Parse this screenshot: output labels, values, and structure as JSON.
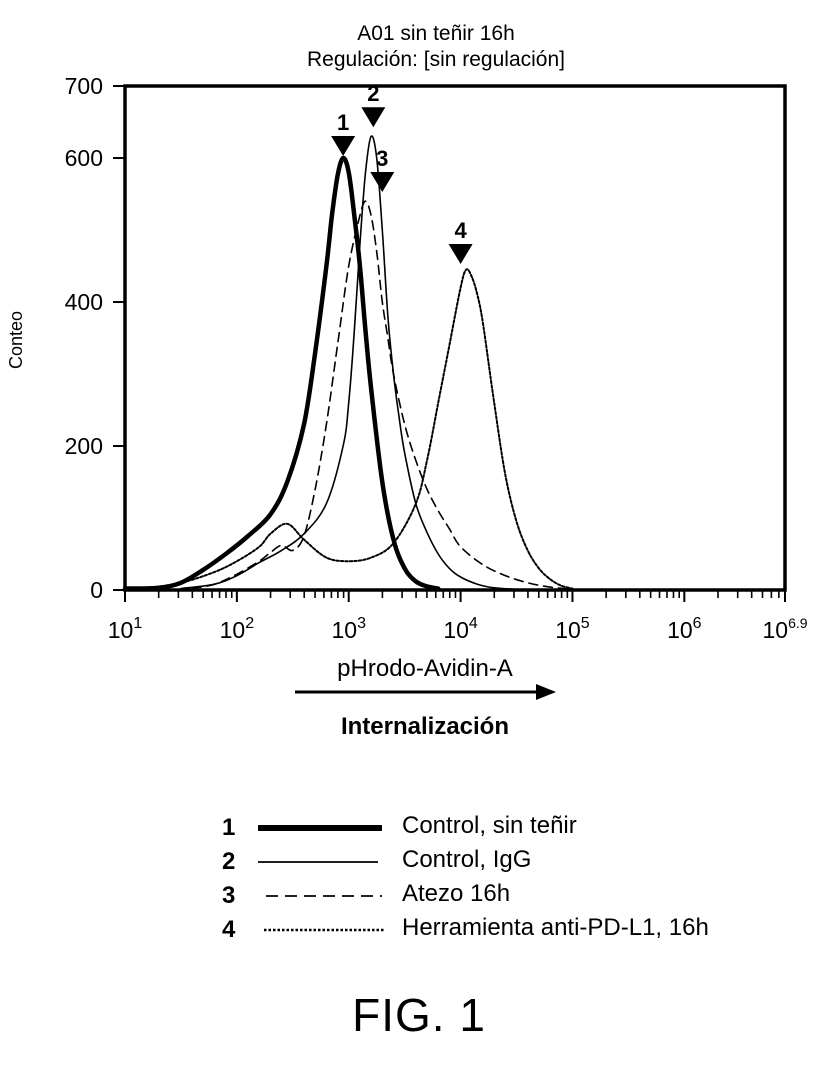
{
  "chart_data": {
    "type": "line",
    "title": "A01 sin teñir 16h",
    "subtitle": "Regulación: [sin regulación]",
    "xlabel": "pHrodo-Avidin-A",
    "ylabel": "Conteo",
    "arrow_label": "Internalización",
    "x_scale": "log",
    "xlim": [
      1,
      6.9
    ],
    "ylim": [
      0,
      700
    ],
    "x_ticks": [
      1,
      2,
      3,
      4,
      5,
      6,
      6.9
    ],
    "x_tick_labels": [
      {
        "base": "10",
        "exp": "1"
      },
      {
        "base": "10",
        "exp": "2"
      },
      {
        "base": "10",
        "exp": "3"
      },
      {
        "base": "10",
        "exp": "4"
      },
      {
        "base": "10",
        "exp": "5"
      },
      {
        "base": "10",
        "exp": "6"
      },
      {
        "base": "10",
        "exp": "6.9"
      }
    ],
    "y_ticks": [
      0,
      200,
      400,
      600,
      700
    ],
    "y_tick_labels": [
      "0",
      "200",
      "400",
      "600",
      "700"
    ],
    "grid": false,
    "legend_position": "bottom",
    "series": [
      {
        "id": "1",
        "name": "Control, sin teñir",
        "style": "thick-solid",
        "x": [
          1.0,
          1.3,
          1.5,
          1.7,
          1.9,
          2.1,
          2.3,
          2.45,
          2.6,
          2.7,
          2.8,
          2.85,
          2.9,
          2.95,
          3.0,
          3.05,
          3.1,
          3.15,
          3.2,
          3.3,
          3.4,
          3.5,
          3.6,
          3.7,
          3.8
        ],
        "y": [
          2,
          3,
          10,
          28,
          50,
          75,
          105,
          150,
          230,
          330,
          450,
          520,
          575,
          600,
          580,
          520,
          450,
          360,
          280,
          150,
          70,
          30,
          12,
          5,
          2
        ]
      },
      {
        "id": "2",
        "name": "Control, IgG",
        "style": "thin-solid",
        "x": [
          1.5,
          1.8,
          2.0,
          2.2,
          2.4,
          2.6,
          2.8,
          2.95,
          3.0,
          3.05,
          3.1,
          3.15,
          3.2,
          3.25,
          3.3,
          3.35,
          3.4,
          3.45,
          3.5,
          3.6,
          3.7,
          3.8,
          3.9,
          4.0,
          4.15,
          4.3,
          4.5
        ],
        "y": [
          2,
          8,
          20,
          38,
          55,
          78,
          120,
          200,
          260,
          360,
          480,
          580,
          630,
          600,
          500,
          380,
          300,
          240,
          190,
          120,
          80,
          50,
          30,
          18,
          8,
          3,
          1
        ]
      },
      {
        "id": "3",
        "name": "Atezo 16h",
        "style": "dashed",
        "x": [
          1.6,
          1.8,
          2.0,
          2.2,
          2.3,
          2.4,
          2.5,
          2.6,
          2.7,
          2.8,
          2.9,
          3.0,
          3.1,
          3.15,
          3.2,
          3.25,
          3.3,
          3.35,
          3.4,
          3.5,
          3.6,
          3.7,
          3.8,
          3.9,
          4.0,
          4.2,
          4.4,
          4.6,
          4.8,
          5.0
        ],
        "y": [
          2,
          8,
          22,
          40,
          52,
          62,
          55,
          75,
          140,
          230,
          340,
          450,
          520,
          540,
          520,
          470,
          400,
          350,
          300,
          230,
          180,
          140,
          110,
          85,
          60,
          35,
          20,
          10,
          4,
          1
        ]
      },
      {
        "id": "4",
        "name": "Herramienta anti-PD-L1, 16h",
        "style": "dotted",
        "x": [
          1.0,
          1.2,
          1.5,
          1.8,
          2.0,
          2.2,
          2.3,
          2.45,
          2.6,
          2.8,
          3.0,
          3.2,
          3.4,
          3.6,
          3.7,
          3.8,
          3.9,
          4.0,
          4.05,
          4.1,
          4.15,
          4.2,
          4.3,
          4.4,
          4.5,
          4.6,
          4.7,
          4.8,
          4.9,
          5.0
        ],
        "y": [
          2,
          3,
          10,
          25,
          40,
          60,
          78,
          92,
          70,
          45,
          40,
          45,
          65,
          120,
          180,
          260,
          340,
          420,
          445,
          435,
          410,
          370,
          260,
          160,
          95,
          55,
          30,
          15,
          6,
          2
        ]
      }
    ],
    "peak_markers": [
      {
        "label": "1",
        "x": 2.95,
        "y": 600
      },
      {
        "label": "2",
        "x": 3.22,
        "y": 640
      },
      {
        "label": "3",
        "x": 3.3,
        "y": 550
      },
      {
        "label": "4",
        "x": 4.0,
        "y": 450
      }
    ]
  },
  "legend": [
    {
      "num": "1",
      "label": "Control, sin teñir",
      "style": "thick-solid"
    },
    {
      "num": "2",
      "label": "Control, IgG",
      "style": "thin-solid"
    },
    {
      "num": "3",
      "label": "Atezo 16h",
      "style": "dashed"
    },
    {
      "num": "4",
      "label": "Herramienta anti-PD-L1, 16h",
      "style": "dotted"
    }
  ],
  "figure_label": "FIG. 1"
}
